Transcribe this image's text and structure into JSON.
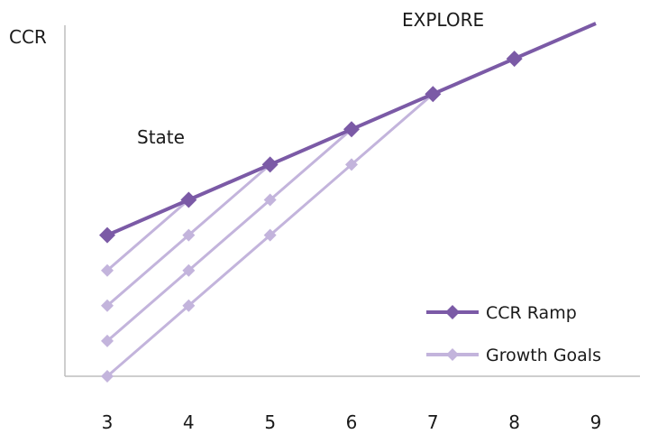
{
  "chart_data": {
    "type": "line",
    "ylabel": "CCR",
    "annotations": [
      "State",
      "EXPLORE"
    ],
    "x_ticks": [
      "3",
      "4",
      "5",
      "6",
      "7",
      "8",
      "9"
    ],
    "xlim": [
      3,
      9
    ],
    "y_axis_values_shown": false,
    "grid": false,
    "legend_position": "bottom-right",
    "series": [
      {
        "name": "CCR Ramp",
        "color": "#7b5aa6",
        "x": [
          3,
          4,
          5,
          6,
          7,
          8,
          9
        ],
        "y": [
          4.0,
          5.0,
          6.0,
          7.0,
          8.0,
          9.0,
          10.0
        ]
      },
      {
        "name": "Growth Goals",
        "color": "#c3b4dc",
        "lines": [
          {
            "x": [
              3,
              4
            ],
            "y": [
              3.0,
              5.0
            ]
          },
          {
            "x": [
              3,
              4,
              5
            ],
            "y": [
              2.0,
              4.0,
              6.0
            ]
          },
          {
            "x": [
              3,
              4,
              5,
              6
            ],
            "y": [
              1.0,
              3.0,
              5.0,
              7.0
            ]
          },
          {
            "x": [
              3,
              4,
              5,
              6,
              7
            ],
            "y": [
              0.0,
              2.0,
              4.0,
              6.0,
              8.0
            ]
          }
        ]
      }
    ]
  }
}
